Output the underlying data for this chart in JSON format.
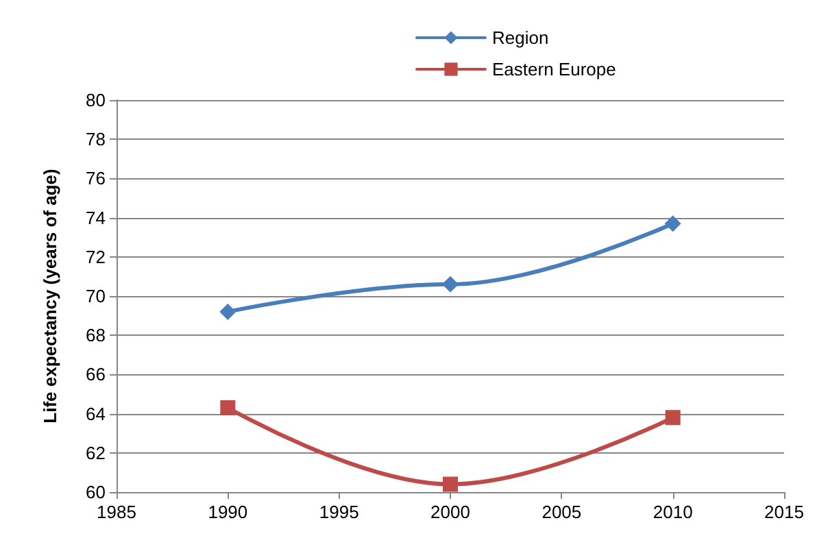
{
  "chart_data": {
    "type": "line",
    "ylabel": "Life expectancy (years of age)",
    "x": [
      1990,
      2000,
      2010
    ],
    "series": [
      {
        "name": "Region",
        "color": "#4a7ebb",
        "values": [
          69.2,
          70.6,
          73.7
        ],
        "marker": "diamond"
      },
      {
        "name": "Eastern Europe",
        "color": "#be4b48",
        "values": [
          64.3,
          60.4,
          63.8
        ],
        "marker": "square"
      }
    ],
    "xlim": [
      1985,
      2015
    ],
    "xticks": [
      1985,
      1990,
      1995,
      2000,
      2005,
      2010,
      2015
    ],
    "ylim": [
      60,
      80
    ],
    "yticks": [
      60,
      62,
      64,
      66,
      68,
      70,
      72,
      74,
      76,
      78,
      80
    ],
    "grid": "y",
    "legend": "top",
    "line_style": "solid"
  }
}
